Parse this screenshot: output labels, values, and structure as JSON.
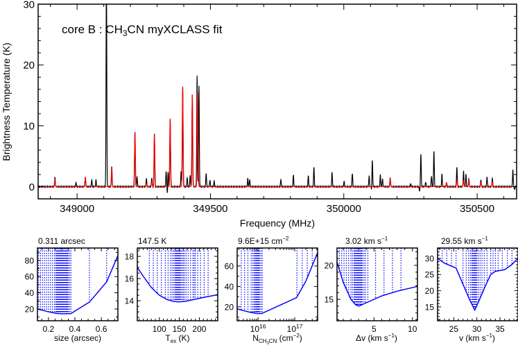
{
  "chart_data": [
    {
      "type": "line",
      "annotation": {
        "pre": "core B : CH",
        "sub": "3",
        "post": "CN myXCLASS fit"
      },
      "xlabel": "Frequency (MHz)",
      "ylabel": "Brightness Temperature (K)",
      "xlim": [
        348854,
        350648
      ],
      "ylim": [
        -2,
        30
      ],
      "xticks": [
        349000,
        349500,
        350000,
        350500
      ],
      "xtick_labels": [
        "349000",
        "349500",
        "350000",
        "350500"
      ],
      "xminor": 100,
      "yticks": [
        0,
        10,
        20,
        30
      ],
      "ytick_labels": [
        "0",
        "10",
        "20",
        "30"
      ],
      "yminor": 2,
      "grid": false,
      "series": [
        {
          "role": "observed",
          "color": "#000000",
          "peaks": [
            [
              348917,
              1.5
            ],
            [
              348996,
              0.7
            ],
            [
              349031,
              1.5
            ],
            [
              349055,
              1.1
            ],
            [
              349071,
              1.1
            ],
            [
              349110,
              36
            ],
            [
              349130,
              3.2
            ],
            [
              349217,
              9.0
            ],
            [
              349225,
              1.6
            ],
            [
              349260,
              1.3
            ],
            [
              349280,
              1.4
            ],
            [
              349290,
              8.7
            ],
            [
              349334,
              2.5
            ],
            [
              349339,
              -1.5
            ],
            [
              349341,
              2.8
            ],
            [
              349349,
              11.0
            ],
            [
              349390,
              2.5
            ],
            [
              349396,
              16.3
            ],
            [
              349413,
              1.5
            ],
            [
              349424,
              1.8
            ],
            [
              349432,
              15.1
            ],
            [
              349450,
              18.2
            ],
            [
              349457,
              16.7
            ],
            [
              349484,
              2.2
            ],
            [
              349498,
              1.1
            ],
            [
              349514,
              0.9
            ],
            [
              349640,
              1.3
            ],
            [
              349647,
              1.2
            ],
            [
              349764,
              1.2
            ],
            [
              349811,
              1.9
            ],
            [
              349867,
              1.8
            ],
            [
              349888,
              3.2
            ],
            [
              349956,
              2.3
            ],
            [
              350001,
              0.9
            ],
            [
              350032,
              2.2
            ],
            [
              350095,
              1.8
            ],
            [
              350107,
              4.6
            ],
            [
              350105,
              -0.7
            ],
            [
              350137,
              1.9
            ],
            [
              350145,
              1.3
            ],
            [
              350174,
              1.4
            ],
            [
              350251,
              0.5
            ],
            [
              350284,
              -0.7
            ],
            [
              350289,
              5.4
            ],
            [
              350307,
              0.8
            ],
            [
              350329,
              1.8
            ],
            [
              350338,
              5.9
            ],
            [
              350368,
              2.0
            ],
            [
              350385,
              0.7
            ],
            [
              350424,
              3.2
            ],
            [
              350449,
              2.5
            ],
            [
              350458,
              2.0
            ],
            [
              350469,
              1.4
            ],
            [
              350514,
              1.1
            ],
            [
              350537,
              1.6
            ],
            [
              350557,
              1.4
            ],
            [
              350634,
              2.7
            ],
            [
              350640,
              -0.5
            ]
          ]
        },
        {
          "role": "model",
          "color": "#ff0000",
          "peaks": [
            [
              348917,
              1.2
            ],
            [
              349031,
              1.5
            ],
            [
              349130,
              3.0
            ],
            [
              349217,
              9.0
            ],
            [
              349260,
              0.5
            ],
            [
              349280,
              0.8
            ],
            [
              349290,
              8.5
            ],
            [
              349349,
              11.2
            ],
            [
              349396,
              16.3
            ],
            [
              349432,
              15.1
            ],
            [
              349452,
              15.5
            ],
            [
              350174,
              1.3
            ],
            [
              350385,
              0.6
            ],
            [
              350424,
              1.0
            ],
            [
              350449,
              1.0
            ],
            [
              350469,
              1.2
            ],
            [
              350514,
              0.7
            ],
            [
              350557,
              0.8
            ]
          ]
        }
      ]
    },
    {
      "type": "line",
      "title": "0.311 arcsec",
      "title_sup": "",
      "xlabel": {
        "pre": "size (arcsec)"
      },
      "xlim": [
        0.117,
        0.725
      ],
      "ylim": [
        5.4,
        95.4
      ],
      "xticks": [
        0.2,
        0.4,
        0.6
      ],
      "xtick_labels": [
        "0.2",
        "0.4",
        "0.6"
      ],
      "xminor": 0.05,
      "yticks": [
        20,
        40,
        60,
        80
      ],
      "ytick_labels": [
        "20",
        "40",
        "60",
        "80"
      ],
      "yminor": 10,
      "color": "#0000ff",
      "curve": {
        "x": [
          0.117,
          0.2,
          0.26,
          0.31,
          0.37,
          0.51,
          0.64,
          0.725
        ],
        "y": [
          20,
          16.5,
          14.5,
          14,
          14.3,
          28.5,
          53.5,
          86
        ]
      },
      "samples": [
        0.125,
        0.14,
        0.155,
        0.17,
        0.185,
        0.2,
        0.215,
        0.23,
        0.245,
        0.255,
        0.26,
        0.265,
        0.27,
        0.275,
        0.28,
        0.285,
        0.29,
        0.295,
        0.3,
        0.305,
        0.31,
        0.311,
        0.315,
        0.32,
        0.325,
        0.33,
        0.335,
        0.34,
        0.345,
        0.35,
        0.36,
        0.37,
        0.51,
        0.64
      ]
    },
    {
      "type": "line",
      "title": "147.5 K",
      "title_sup": "",
      "xlabel": {
        "pre": "T",
        "sub": "ex",
        "post": " (K)"
      },
      "xlim": [
        45,
        246
      ],
      "ylim": [
        12.2,
        18.75
      ],
      "xticks": [
        100,
        150,
        200
      ],
      "xtick_labels": [
        "100",
        "150",
        "200"
      ],
      "xminor": 10,
      "yticks": [
        14,
        16,
        18
      ],
      "ytick_labels": [
        "14",
        "16",
        "18"
      ],
      "yminor": 0.5,
      "color": "#0000ff",
      "curve": {
        "x": [
          45,
          60,
          80,
          100,
          120,
          135,
          147.5,
          165,
          185,
          210,
          246
        ],
        "y": [
          17,
          16.2,
          15.2,
          14.5,
          14.1,
          13.95,
          13.9,
          13.95,
          14.1,
          14.3,
          14.55
        ]
      },
      "samples": [
        75,
        85,
        95,
        105,
        115,
        122,
        128,
        132,
        136,
        139,
        141,
        143,
        144,
        145,
        146,
        147,
        147.5,
        148,
        149,
        150,
        151,
        152,
        154,
        157,
        160,
        163,
        167,
        172,
        178,
        184,
        187,
        190,
        196,
        203,
        212,
        222
      ]
    },
    {
      "type": "line",
      "title": "9.6E+15 cm",
      "title_sup": "−2",
      "xlabel": {
        "pre": "N",
        "sub": "CH",
        "subsub": "3",
        "sub2": "CN",
        "post": " (cm",
        "sup": "−2",
        "post2": ")"
      },
      "log_x": true,
      "xlim": [
        2700000000000000.0,
        4.2e+17
      ],
      "ylim": [
        6.4,
        77.6
      ],
      "xticks": [
        1e+16,
        1e+17
      ],
      "xtick_labels": [
        {
          "base": "10",
          "exp": "16"
        },
        {
          "base": "10",
          "exp": "17"
        }
      ],
      "yticks": [
        20,
        40,
        60
      ],
      "ytick_labels": [
        "20",
        "40",
        "60"
      ],
      "yminor": 10,
      "color": "#0000ff",
      "curve": {
        "x": [
          2700000000000000.0,
          6300000000000000.0,
          9600000000000000.0,
          1.26e+16,
          1.12e+17,
          2e+17,
          4.2e+17
        ],
        "y": [
          18,
          14.5,
          13.5,
          13.5,
          29,
          45,
          73
        ]
      },
      "samples": [
        3500000000000000.0,
        4300000000000000.0,
        5300000000000000.0,
        6500000000000000.0,
        7200000000000000.0,
        7800000000000000.0,
        8300000000000000.0,
        8700000000000000.0,
        9000000000000000.0,
        9300000000000000.0,
        9600000000000000.0,
        9900000000000000.0,
        1.02e+16,
        1.06e+16,
        1.1e+16,
        1.2e+16,
        1.3e+16,
        1.15e+17,
        1.6e+17,
        2.2e+17,
        3e+17
      ]
    },
    {
      "type": "line",
      "title": "3.02 km s",
      "title_sup": "−1",
      "xlabel": {
        "pre": "Δv (km s",
        "sup": "−1",
        "post": ")"
      },
      "xlim": [
        0.19,
        10.65
      ],
      "ylim": [
        11.85,
        22.55
      ],
      "xticks": [
        5,
        10
      ],
      "xtick_labels": [
        "5",
        "10"
      ],
      "xminor": 1,
      "yticks": [
        15,
        20
      ],
      "ytick_labels": [
        "15",
        "20"
      ],
      "yminor": 1,
      "color": "#0000ff",
      "curve": {
        "x": [
          0.19,
          1,
          2,
          2.6,
          3.02,
          4,
          6,
          8,
          10.65
        ],
        "y": [
          20.5,
          17.5,
          15,
          14.2,
          14,
          14.5,
          15.5,
          16.2,
          16.9
        ]
      },
      "samples": [
        0.5,
        0.8,
        1.1,
        1.4,
        1.7,
        2.0,
        2.2,
        2.4,
        2.5,
        2.6,
        2.7,
        2.8,
        2.9,
        3.0,
        3.02,
        3.1,
        3.2,
        3.3,
        3.4,
        3.5,
        3.7,
        3.9,
        4.2,
        5.2,
        6.3,
        7.4,
        8.5
      ]
    },
    {
      "type": "line",
      "title": "29.55 km s",
      "title_sup": "−1",
      "xlabel": {
        "pre": "v (km s",
        "sup": "−1",
        "post": ")"
      },
      "xlim": [
        21.5,
        38.9
      ],
      "ylim": [
        10.7,
        33.2
      ],
      "xticks": [
        25,
        30,
        35
      ],
      "xtick_labels": [
        "25",
        "30",
        "35"
      ],
      "xminor": 1,
      "yticks": [
        15,
        20,
        25,
        30
      ],
      "ytick_labels": [
        "15",
        "20",
        "25",
        "30"
      ],
      "yminor": 1,
      "color": "#0000ff",
      "curve": {
        "x": [
          21.5,
          23,
          25.5,
          27,
          28.5,
          29.55,
          30.5,
          32,
          33,
          34,
          36,
          37.5,
          38.9
        ],
        "y": [
          30,
          28.5,
          27,
          22,
          17,
          14,
          17,
          22,
          25,
          26,
          26.5,
          28,
          30
        ]
      },
      "samples": [
        22.5,
        23.5,
        24.5,
        25.5,
        27,
        27.7,
        28.2,
        28.6,
        28.9,
        29.1,
        29.3,
        29.4,
        29.5,
        29.55,
        29.6,
        29.7,
        29.8,
        30,
        30.3,
        30.7,
        31.1,
        31.6,
        32.2,
        33,
        33.5,
        34,
        34.6,
        35.5,
        36.6,
        37.6
      ]
    }
  ]
}
